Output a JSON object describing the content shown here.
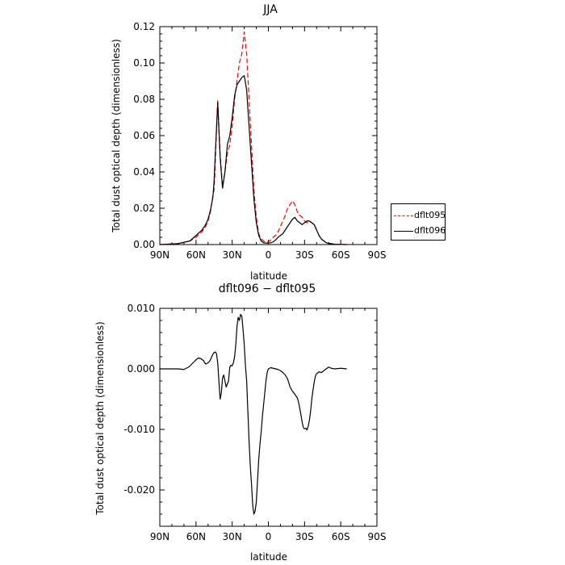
{
  "chart_data": [
    {
      "type": "line",
      "title": "JJA",
      "xlabel": "latitude",
      "ylabel": "Total dust optical depth (dimensionless)",
      "xlim": [
        90,
        -90
      ],
      "ylim": [
        0,
        0.12
      ],
      "x_ticks": [
        90,
        60,
        30,
        0,
        -30,
        -60,
        -90
      ],
      "x_tick_labels": [
        "90N",
        "60N",
        "30N",
        "0",
        "30S",
        "60S",
        "90S"
      ],
      "y_ticks": [
        0,
        0.02,
        0.04,
        0.06,
        0.08,
        0.1,
        0.12
      ],
      "y_tick_labels": [
        "0.00",
        "0.02",
        "0.04",
        "0.06",
        "0.08",
        "0.10",
        "0.12"
      ],
      "legend_position": "outside-right",
      "grid": false,
      "series": [
        {
          "name": "dflt095",
          "color": "#ff0000",
          "dash": "dashed",
          "x": [
            90,
            75,
            65,
            60,
            55,
            52,
            50,
            48,
            46,
            45,
            44,
            42,
            40,
            38,
            36,
            34,
            32,
            30,
            28,
            26,
            24,
            22,
            20,
            18,
            16,
            14,
            12,
            10,
            8,
            6,
            4,
            2,
            0,
            -2,
            -4,
            -6,
            -8,
            -10,
            -12,
            -14,
            -16,
            -18,
            -20,
            -22,
            -24,
            -26,
            -28,
            -30,
            -32,
            -34,
            -36,
            -38,
            -40,
            -42,
            -44,
            -46,
            -48,
            -50,
            -52,
            -55,
            -60,
            -65
          ],
          "y": [
            0,
            0.0005,
            0.002,
            0.004,
            0.007,
            0.01,
            0.013,
            0.018,
            0.027,
            0.03,
            0.045,
            0.08,
            0.05,
            0.032,
            0.04,
            0.05,
            0.055,
            0.065,
            0.08,
            0.09,
            0.1,
            0.105,
            0.117,
            0.105,
            0.08,
            0.055,
            0.03,
            0.015,
            0.006,
            0.003,
            0.002,
            0.001,
            0.0015,
            0.0025,
            0.004,
            0.005,
            0.007,
            0.01,
            0.013,
            0.016,
            0.02,
            0.022,
            0.024,
            0.022,
            0.018,
            0.016,
            0.015,
            0.013,
            0.012,
            0.013,
            0.012,
            0.011,
            0.008,
            0.005,
            0.003,
            0.002,
            0.001,
            0.0007,
            0.0005,
            0.0002,
            0.0001,
            0
          ]
        },
        {
          "name": "dflt096",
          "color": "#000000",
          "dash": "solid",
          "x": [
            90,
            75,
            65,
            60,
            55,
            52,
            50,
            48,
            46,
            45,
            44,
            42,
            40,
            38,
            36,
            34,
            32,
            30,
            28,
            26,
            24,
            22,
            20,
            18,
            16,
            14,
            12,
            10,
            8,
            6,
            4,
            2,
            0,
            -2,
            -4,
            -6,
            -8,
            -10,
            -12,
            -14,
            -16,
            -18,
            -20,
            -22,
            -24,
            -26,
            -28,
            -30,
            -32,
            -34,
            -36,
            -38,
            -40,
            -42,
            -44,
            -46,
            -48,
            -50,
            -52,
            -55,
            -60,
            -65
          ],
          "y": [
            0,
            0.0005,
            0.002,
            0.005,
            0.008,
            0.011,
            0.014,
            0.019,
            0.026,
            0.035,
            0.05,
            0.078,
            0.048,
            0.031,
            0.04,
            0.055,
            0.06,
            0.07,
            0.082,
            0.088,
            0.09,
            0.092,
            0.093,
            0.085,
            0.065,
            0.045,
            0.025,
            0.012,
            0.005,
            0.002,
            0.001,
            0.0008,
            0.0008,
            0.001,
            0.0015,
            0.0025,
            0.004,
            0.005,
            0.006,
            0.008,
            0.01,
            0.012,
            0.014,
            0.015,
            0.013,
            0.012,
            0.011,
            0.012,
            0.013,
            0.013,
            0.012,
            0.011,
            0.008,
            0.005,
            0.003,
            0.002,
            0.001,
            0.0007,
            0.0005,
            0.0002,
            0.0001,
            0
          ]
        }
      ]
    },
    {
      "type": "line",
      "title": "dflt096 − dflt095",
      "xlabel": "latitude",
      "ylabel": "Total dust optical depth (dimensionless)",
      "xlim": [
        90,
        -90
      ],
      "ylim": [
        -0.026,
        0.01
      ],
      "x_ticks": [
        90,
        60,
        30,
        0,
        -30,
        -60,
        -90
      ],
      "x_tick_labels": [
        "90N",
        "60N",
        "30N",
        "0",
        "30S",
        "60S",
        "90S"
      ],
      "y_ticks": [
        0.01,
        0,
        -0.01,
        -0.02
      ],
      "y_tick_labels": [
        "0.010",
        "0.000",
        "-0.010",
        "-0.020"
      ],
      "grid": false,
      "series": [
        {
          "color": "#000000",
          "dash": "solid",
          "x": [
            90,
            75,
            70,
            66,
            62,
            60,
            58,
            56,
            54,
            52,
            50,
            49,
            48,
            47,
            46,
            45,
            44,
            43,
            42,
            41,
            40,
            39,
            38,
            37,
            36,
            35,
            34,
            33,
            32,
            31,
            30,
            29,
            28,
            27,
            26,
            25,
            24,
            23,
            22,
            21,
            20,
            19,
            18,
            17,
            16,
            15,
            14,
            13,
            12,
            11,
            10,
            9,
            8,
            7,
            6,
            5,
            4,
            3,
            2,
            1,
            0,
            -2,
            -4,
            -6,
            -8,
            -10,
            -12,
            -14,
            -16,
            -18,
            -20,
            -22,
            -24,
            -25,
            -26,
            -27,
            -28,
            -29,
            -30,
            -31,
            -32,
            -33,
            -34,
            -35,
            -36,
            -37,
            -38,
            -39,
            -40,
            -42,
            -44,
            -46,
            -48,
            -50,
            -52,
            -55,
            -60,
            -65
          ],
          "y": [
            0,
            0,
            -0.0001,
            0.0003,
            0.0011,
            0.0015,
            0.0018,
            0.0017,
            0.0014,
            0.0008,
            0.001,
            0.0012,
            0.0015,
            0.002,
            0.0024,
            0.0027,
            0.0028,
            0.0025,
            0.001,
            -0.002,
            -0.005,
            -0.004,
            -0.0015,
            -0.001,
            -0.002,
            -0.003,
            -0.0025,
            -0.002,
            0.0003,
            0.0006,
            0.0005,
            0.001,
            0.002,
            0.004,
            0.007,
            0.0085,
            0.008,
            0.009,
            0.0087,
            0.0065,
            0.004,
            0.0005,
            -0.002,
            -0.007,
            -0.012,
            -0.016,
            -0.019,
            -0.0225,
            -0.024,
            -0.0235,
            -0.022,
            -0.0185,
            -0.015,
            -0.0125,
            -0.0105,
            -0.008,
            -0.006,
            -0.004,
            -0.002,
            -0.0006,
            0,
            0.0002,
            0.0001,
            0,
            -0.0001,
            -0.0003,
            -0.0006,
            -0.001,
            -0.0017,
            -0.003,
            -0.0037,
            -0.0042,
            -0.0048,
            -0.0055,
            -0.0065,
            -0.0076,
            -0.0088,
            -0.0097,
            -0.0099,
            -0.0098,
            -0.0101,
            -0.0095,
            -0.0085,
            -0.007,
            -0.005,
            -0.0035,
            -0.0022,
            -0.0012,
            -0.0008,
            -0.0005,
            -0.0006,
            -0.0003,
            0,
            0.0003,
            0.0001,
            0,
            0.0001,
            0
          ]
        }
      ]
    }
  ]
}
